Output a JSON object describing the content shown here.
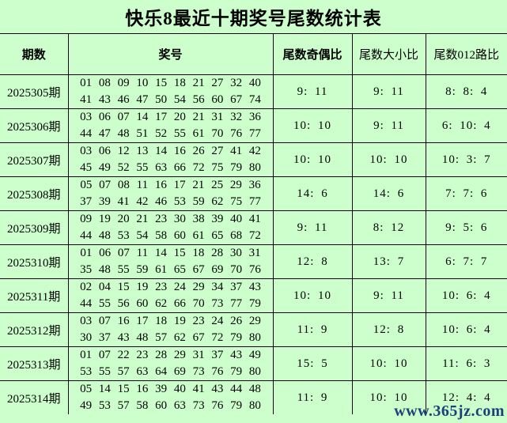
{
  "title": "快乐8最近十期奖号尾数统计表",
  "watermark": "www.365jz.com",
  "colors": {
    "background": "#ccffcc",
    "border": "#000000",
    "text": "#000000",
    "watermark": "#1d4077"
  },
  "table": {
    "headers": {
      "period": "期数",
      "numbers": "奖号",
      "odd_even": "尾数奇偶比",
      "big_small": "尾数大小比",
      "route012": "尾数012路比"
    },
    "rows": [
      {
        "period": "2025305期",
        "numbers_line1": "01 08 09 10 15 18 21 27 32 40",
        "numbers_line2": "41 43 46 47 50 54 56 60 67 74",
        "odd_even": "9: 11",
        "big_small": "9: 11",
        "route012": "8: 8: 4"
      },
      {
        "period": "2025306期",
        "numbers_line1": "03 06 07 14 17 20 21 31 32 36",
        "numbers_line2": "44 47 48 51 52 55 61 70 76 77",
        "odd_even": "10: 10",
        "big_small": "9: 11",
        "route012": "6: 10: 4"
      },
      {
        "period": "2025307期",
        "numbers_line1": "03 06 12 13 14 16 26 27 41 42",
        "numbers_line2": "45 49 52 55 63 66 72 75 79 80",
        "odd_even": "10: 10",
        "big_small": "10: 10",
        "route012": "10: 3: 7"
      },
      {
        "period": "2025308期",
        "numbers_line1": "05 07 08 11 16 17 21 25 29 36",
        "numbers_line2": "37 39 41 42 46 53 59 62 75 77",
        "odd_even": "14: 6",
        "big_small": "14: 6",
        "route012": "7: 7: 6"
      },
      {
        "period": "2025309期",
        "numbers_line1": "09 19 20 21 23 30 38 39 40 41",
        "numbers_line2": "44 48 53 54 58 60 61 65 68 72",
        "odd_even": "9: 11",
        "big_small": "8: 12",
        "route012": "9: 5: 6"
      },
      {
        "period": "2025310期",
        "numbers_line1": "01 06 07 11 14 15 18 28 30 31",
        "numbers_line2": "35 48 55 59 61 65 67 69 70 76",
        "odd_even": "12: 8",
        "big_small": "13: 7",
        "route012": "6: 7: 7"
      },
      {
        "period": "2025311期",
        "numbers_line1": "02 04 15 19 23 24 29 34 37 43",
        "numbers_line2": "44 55 56 60 62 66 70 73 77 79",
        "odd_even": "10: 10",
        "big_small": "9: 11",
        "route012": "10: 6: 4"
      },
      {
        "period": "2025312期",
        "numbers_line1": "03 07 16 17 18 19 23 24 26 29",
        "numbers_line2": "30 37 43 48 57 62 67 72 79 80",
        "odd_even": "11: 9",
        "big_small": "12: 8",
        "route012": "10: 6: 4"
      },
      {
        "period": "2025313期",
        "numbers_line1": "01 07 22 23 28 29 31 37 43 49",
        "numbers_line2": "53 55 57 63 64 69 73 76 79 80",
        "odd_even": "15: 5",
        "big_small": "10: 10",
        "route012": "11: 6: 3"
      },
      {
        "period": "2025314期",
        "numbers_line1": "05 14 15 16 39 40 41 43 44 48",
        "numbers_line2": "49 53 57 58 60 63 73 76 79 80",
        "odd_even": "11: 9",
        "big_small": "10: 10",
        "route012": "12: 4: 4"
      }
    ]
  }
}
